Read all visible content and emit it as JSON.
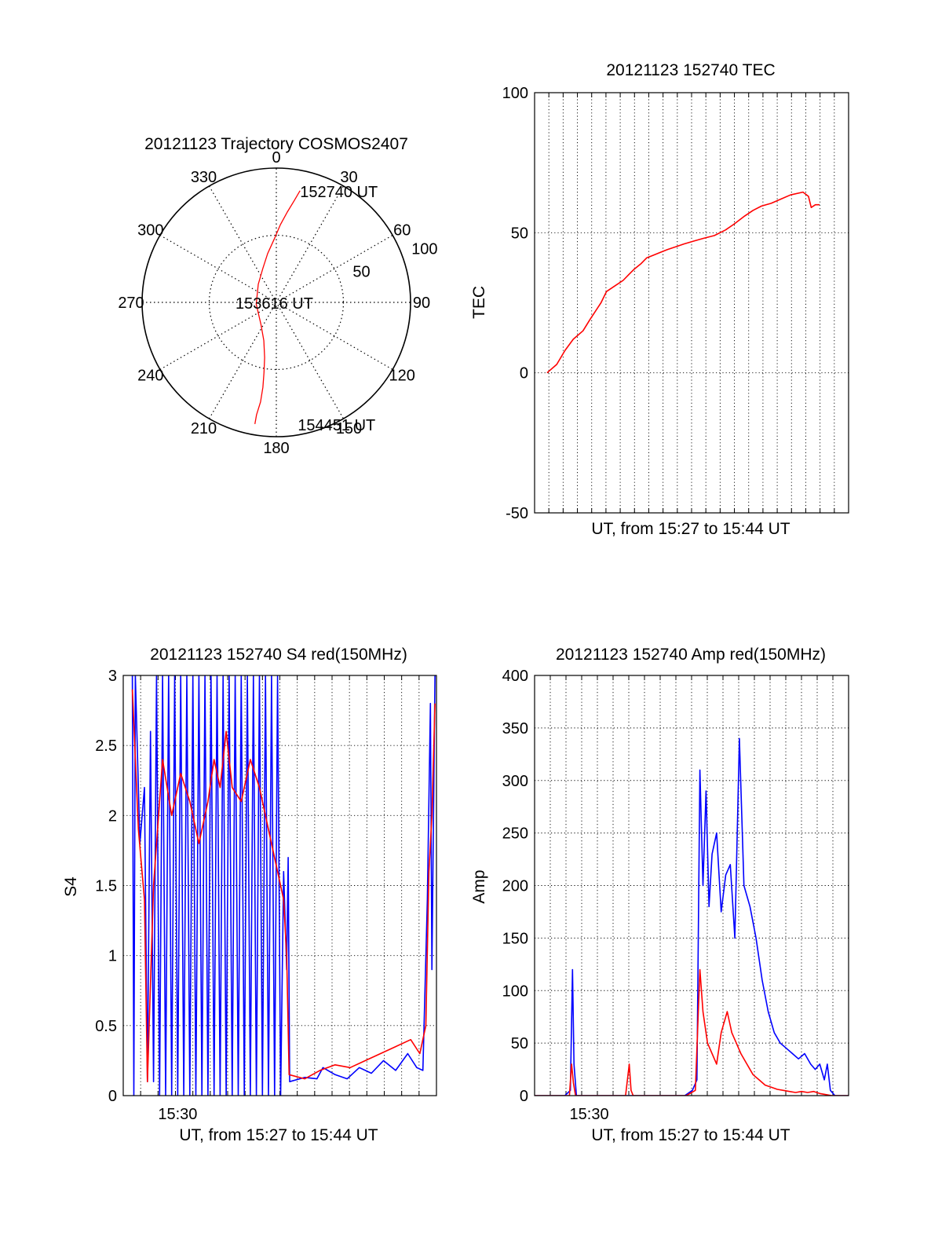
{
  "colors": {
    "red": "#ff0000",
    "blue": "#0000ff",
    "axis": "#000000",
    "grid": "#000000"
  },
  "chart_data": [
    {
      "type": "polar",
      "title": "20121123 Trajectory COSMOS2407",
      "angle_labels": [
        "0",
        "30",
        "60",
        "90",
        "120",
        "150",
        "180",
        "210",
        "240",
        "270",
        "300",
        "330"
      ],
      "radial_labels": [
        "50",
        "100"
      ],
      "rlim": [
        0,
        100
      ],
      "grid": true,
      "point_labels": [
        {
          "text": "152740 UT",
          "angle": 12,
          "r": 85
        },
        {
          "text": "153616 UT",
          "angle": 0,
          "r": 0
        },
        {
          "text": "154451 UT",
          "angle": 170,
          "r": 92
        }
      ],
      "series": [
        {
          "color": "red",
          "points": [
            [
              12,
              85
            ],
            [
              10,
              77
            ],
            [
              7,
              68
            ],
            [
              3,
              58
            ],
            [
              -2,
              47
            ],
            [
              -10,
              37
            ],
            [
              -22,
              27
            ],
            [
              -45,
              19
            ],
            [
              -95,
              15
            ],
            [
              -145,
              20
            ],
            [
              -162,
              30
            ],
            [
              -168,
              42
            ],
            [
              -170,
              53
            ],
            [
              -171,
              64
            ],
            [
              -171,
              75
            ],
            [
              -170,
              85
            ],
            [
              -170,
              92
            ]
          ]
        }
      ]
    },
    {
      "type": "line",
      "title": "20121123 152740 TEC",
      "xlabel": "UT, from 15:27 to 15:44 UT",
      "ylabel": "TEC",
      "xlim": [
        0,
        1135
      ],
      "ylim": [
        -50,
        100
      ],
      "yticks": [
        "-50",
        "0",
        "50",
        "100"
      ],
      "x_grid_count": 22,
      "grid": true,
      "series": [
        {
          "color": "red",
          "points": [
            [
              45,
              0
            ],
            [
              80,
              3
            ],
            [
              110,
              8
            ],
            [
              140,
              12
            ],
            [
              175,
              15
            ],
            [
              200,
              19
            ],
            [
              240,
              25
            ],
            [
              260,
              29
            ],
            [
              290,
              31
            ],
            [
              320,
              33
            ],
            [
              340,
              35
            ],
            [
              360,
              37
            ],
            [
              385,
              39
            ],
            [
              405,
              41
            ],
            [
              430,
              42
            ],
            [
              455,
              43
            ],
            [
              480,
              44
            ],
            [
              510,
              45
            ],
            [
              540,
              46
            ],
            [
              575,
              47
            ],
            [
              610,
              48
            ],
            [
              650,
              49
            ],
            [
              690,
              51
            ],
            [
              720,
              53
            ],
            [
              760,
              56
            ],
            [
              790,
              58
            ],
            [
              820,
              59.5
            ],
            [
              855,
              60.5
            ],
            [
              890,
              62
            ],
            [
              925,
              63.5
            ],
            [
              970,
              64.5
            ],
            [
              990,
              63
            ],
            [
              1000,
              59
            ],
            [
              1015,
              60
            ],
            [
              1030,
              60
            ]
          ]
        }
      ]
    },
    {
      "type": "line",
      "title": "20121123 152740 S4 red(150MHz)",
      "xlabel": "UT, from 15:27 to 15:44 UT",
      "ylabel": "S4",
      "xtick_labels": [
        {
          "x": 180,
          "label": "15:30"
        }
      ],
      "xlim": [
        0,
        1035
      ],
      "ylim": [
        0,
        3
      ],
      "yticks": [
        "0",
        "0.5",
        "1",
        "1.5",
        "2",
        "2.5",
        "3"
      ],
      "x_grid_count": 18,
      "grid": true,
      "series": [
        {
          "color": "blue",
          "points": [
            [
              30,
              3
            ],
            [
              35,
              0
            ],
            [
              40,
              3
            ],
            [
              55,
              1.8
            ],
            [
              70,
              2.2
            ],
            [
              80,
              0.1
            ],
            [
              90,
              2.6
            ],
            [
              100,
              0.1
            ],
            [
              110,
              3
            ],
            [
              120,
              0
            ],
            [
              130,
              3
            ],
            [
              140,
              0
            ],
            [
              150,
              3
            ],
            [
              160,
              0
            ],
            [
              170,
              3
            ],
            [
              180,
              0
            ],
            [
              190,
              3
            ],
            [
              200,
              0
            ],
            [
              210,
              3
            ],
            [
              220,
              0
            ],
            [
              230,
              3
            ],
            [
              240,
              0
            ],
            [
              250,
              3
            ],
            [
              260,
              0
            ],
            [
              270,
              3
            ],
            [
              280,
              0
            ],
            [
              290,
              3
            ],
            [
              300,
              0
            ],
            [
              310,
              3
            ],
            [
              320,
              0
            ],
            [
              330,
              3
            ],
            [
              340,
              0
            ],
            [
              350,
              3
            ],
            [
              360,
              0
            ],
            [
              370,
              3
            ],
            [
              380,
              0
            ],
            [
              390,
              3
            ],
            [
              400,
              0
            ],
            [
              410,
              3
            ],
            [
              420,
              0
            ],
            [
              430,
              3
            ],
            [
              440,
              0
            ],
            [
              450,
              3
            ],
            [
              460,
              0
            ],
            [
              470,
              3
            ],
            [
              480,
              0
            ],
            [
              490,
              3
            ],
            [
              500,
              0
            ],
            [
              510,
              3
            ],
            [
              520,
              0
            ],
            [
              530,
              1.6
            ],
            [
              540,
              0.9
            ],
            [
              545,
              1.7
            ],
            [
              550,
              0.1
            ],
            [
              600,
              0.13
            ],
            [
              640,
              0.12
            ],
            [
              660,
              0.2
            ],
            [
              700,
              0.15
            ],
            [
              740,
              0.12
            ],
            [
              780,
              0.2
            ],
            [
              820,
              0.16
            ],
            [
              860,
              0.25
            ],
            [
              900,
              0.18
            ],
            [
              940,
              0.3
            ],
            [
              970,
              0.2
            ],
            [
              990,
              0.18
            ],
            [
              1005,
              1.4
            ],
            [
              1015,
              2.8
            ],
            [
              1020,
              0.9
            ],
            [
              1030,
              3
            ]
          ]
        },
        {
          "color": "red",
          "points": [
            [
              30,
              2.9
            ],
            [
              50,
              1.9
            ],
            [
              70,
              1.4
            ],
            [
              80,
              0.1
            ],
            [
              100,
              1.5
            ],
            [
              130,
              2.4
            ],
            [
              160,
              2.0
            ],
            [
              190,
              2.3
            ],
            [
              220,
              2.1
            ],
            [
              250,
              1.8
            ],
            [
              280,
              2.1
            ],
            [
              300,
              2.4
            ],
            [
              320,
              2.2
            ],
            [
              340,
              2.6
            ],
            [
              360,
              2.2
            ],
            [
              390,
              2.1
            ],
            [
              420,
              2.4
            ],
            [
              450,
              2.2
            ],
            [
              480,
              1.9
            ],
            [
              510,
              1.6
            ],
            [
              530,
              1.4
            ],
            [
              540,
              1.0
            ],
            [
              548,
              0.15
            ],
            [
              600,
              0.12
            ],
            [
              650,
              0.18
            ],
            [
              700,
              0.22
            ],
            [
              750,
              0.2
            ],
            [
              800,
              0.25
            ],
            [
              850,
              0.3
            ],
            [
              900,
              0.35
            ],
            [
              950,
              0.4
            ],
            [
              980,
              0.3
            ],
            [
              1000,
              0.5
            ],
            [
              1010,
              1.6
            ],
            [
              1020,
              2.0
            ],
            [
              1030,
              2.8
            ]
          ]
        }
      ]
    },
    {
      "type": "line",
      "title": "20121123 152740 Amp red(150MHz)",
      "xlabel": "UT, from 15:27 to 15:44 UT",
      "ylabel": "Amp",
      "xtick_labels": [
        {
          "x": 180,
          "label": "15:30"
        }
      ],
      "xlim": [
        0,
        1035
      ],
      "ylim": [
        0,
        400
      ],
      "yticks": [
        "0",
        "50",
        "100",
        "150",
        "200",
        "250",
        "300",
        "350",
        "400"
      ],
      "x_grid_count": 20,
      "grid": true,
      "series": [
        {
          "color": "blue",
          "points": [
            [
              0,
              0
            ],
            [
              100,
              0
            ],
            [
              118,
              5
            ],
            [
              125,
              120
            ],
            [
              130,
              30
            ],
            [
              138,
              0
            ],
            [
              300,
              0
            ],
            [
              495,
              0
            ],
            [
              520,
              5
            ],
            [
              535,
              15
            ],
            [
              545,
              310
            ],
            [
              555,
              200
            ],
            [
              565,
              290
            ],
            [
              575,
              180
            ],
            [
              585,
              230
            ],
            [
              600,
              250
            ],
            [
              615,
              175
            ],
            [
              630,
              210
            ],
            [
              645,
              220
            ],
            [
              660,
              150
            ],
            [
              675,
              340
            ],
            [
              690,
              200
            ],
            [
              710,
              180
            ],
            [
              730,
              150
            ],
            [
              750,
              110
            ],
            [
              770,
              80
            ],
            [
              790,
              60
            ],
            [
              810,
              50
            ],
            [
              830,
              45
            ],
            [
              850,
              40
            ],
            [
              870,
              35
            ],
            [
              890,
              40
            ],
            [
              910,
              30
            ],
            [
              925,
              25
            ],
            [
              940,
              30
            ],
            [
              955,
              15
            ],
            [
              965,
              30
            ],
            [
              975,
              5
            ],
            [
              990,
              0
            ],
            [
              1035,
              0
            ]
          ]
        },
        {
          "color": "red",
          "points": [
            [
              0,
              0
            ],
            [
              115,
              0
            ],
            [
              122,
              30
            ],
            [
              128,
              12
            ],
            [
              135,
              0
            ],
            [
              300,
              0
            ],
            [
              312,
              30
            ],
            [
              318,
              5
            ],
            [
              325,
              0
            ],
            [
              500,
              0
            ],
            [
              530,
              5
            ],
            [
              545,
              120
            ],
            [
              555,
              80
            ],
            [
              570,
              50
            ],
            [
              585,
              40
            ],
            [
              600,
              30
            ],
            [
              615,
              60
            ],
            [
              635,
              80
            ],
            [
              650,
              60
            ],
            [
              665,
              50
            ],
            [
              680,
              40
            ],
            [
              700,
              30
            ],
            [
              720,
              20
            ],
            [
              740,
              15
            ],
            [
              760,
              10
            ],
            [
              780,
              8
            ],
            [
              800,
              6
            ],
            [
              820,
              5
            ],
            [
              840,
              4
            ],
            [
              860,
              3
            ],
            [
              880,
              4
            ],
            [
              900,
              3
            ],
            [
              920,
              4
            ],
            [
              940,
              2
            ],
            [
              960,
              1
            ],
            [
              980,
              0
            ],
            [
              1035,
              0
            ]
          ]
        }
      ]
    }
  ]
}
